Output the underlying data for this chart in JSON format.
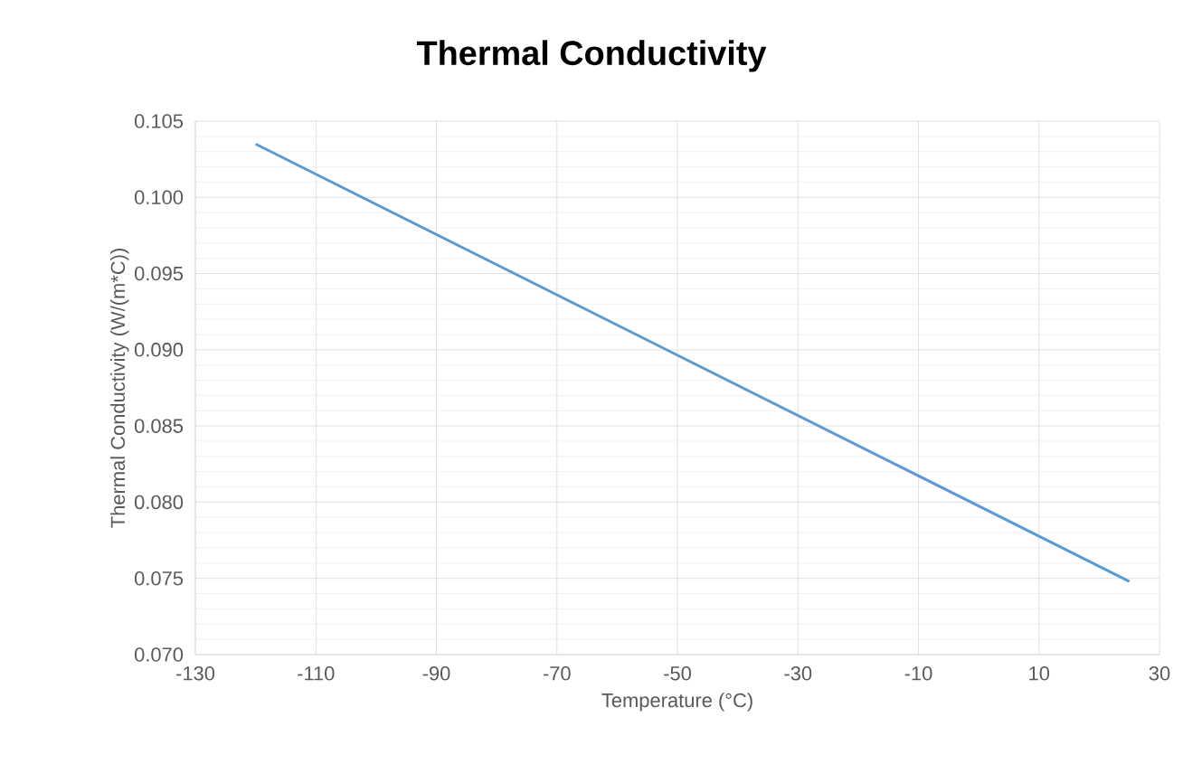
{
  "chart_data": {
    "type": "line",
    "title": "Thermal Conductivity",
    "xlabel": "Temperature (°C)",
    "ylabel": "Thermal Conductivity (W/(m*C))",
    "x": [
      -120,
      25
    ],
    "series": [
      {
        "color": "#5b9bd5",
        "values": [
          0.1035,
          0.0748
        ]
      }
    ],
    "xlim": [
      -130,
      30
    ],
    "xticks": [
      -130,
      -110,
      -90,
      -70,
      -50,
      -30,
      -10,
      10,
      30
    ],
    "ylim": [
      0.07,
      0.105
    ],
    "yticks": [
      {
        "value": 0.07,
        "label": "0.070"
      },
      {
        "value": 0.075,
        "label": "0.075"
      },
      {
        "value": 0.08,
        "label": "0.080"
      },
      {
        "value": 0.085,
        "label": "0.085"
      },
      {
        "value": 0.09,
        "label": "0.090"
      },
      {
        "value": 0.095,
        "label": "0.095"
      },
      {
        "value": 0.1,
        "label": "0.100"
      },
      {
        "value": 0.105,
        "label": "0.105"
      }
    ],
    "grid": true,
    "marker": "none",
    "line_style": "solid"
  }
}
